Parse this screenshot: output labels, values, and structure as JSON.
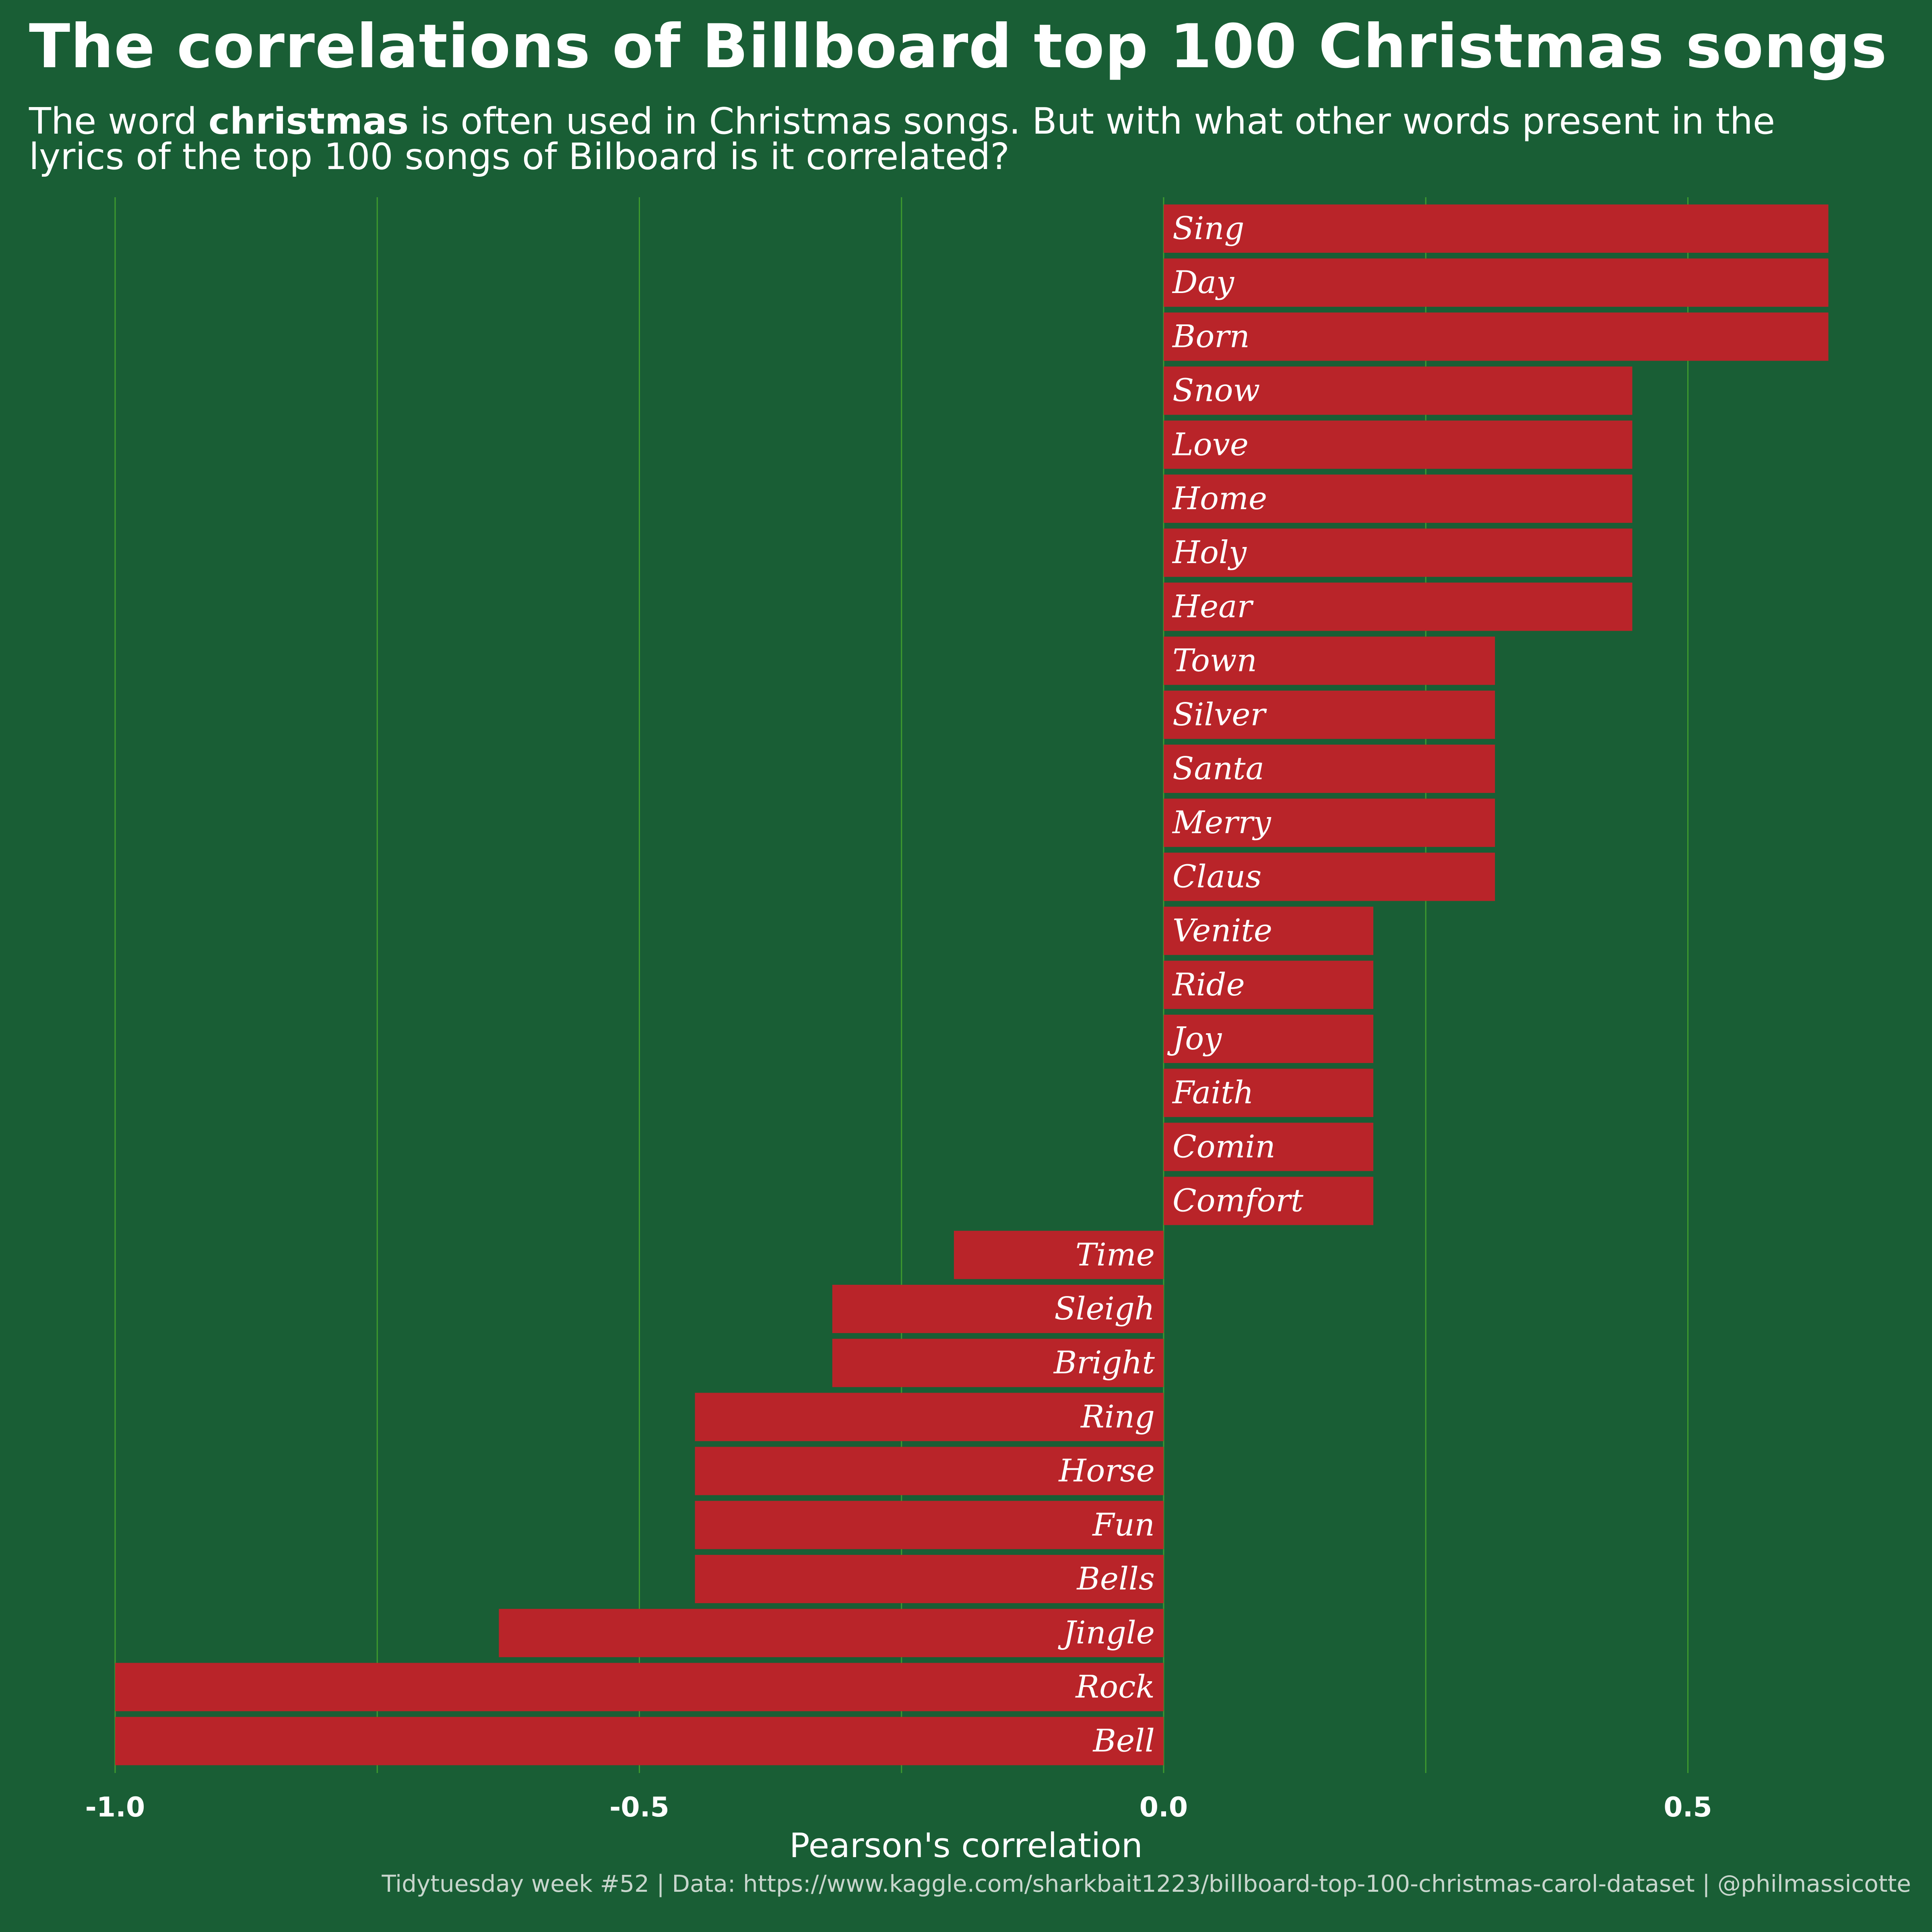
{
  "title": "The correlations of Billboard top 100 Christmas songs",
  "subtitle": {
    "before": "The word ",
    "bold": "christmas",
    "after": " is often used in Christmas songs. But with what other words present in the lyrics of the top 100 songs of Bilboard is it correlated?"
  },
  "caption": "Tidytuesday week #52 | Data: https://www.kaggle.com/sharkbait1223/billboard-top-100-christmas-carol-dataset | @philmassicotte",
  "colors": {
    "background": "#195e35",
    "bar": "#b92429",
    "grid": "#3e9a2e",
    "text": "#ffffff"
  },
  "chart_data": {
    "type": "bar",
    "orientation": "horizontal",
    "xlabel": "Pearson's correlation",
    "xlim": [
      -1.05,
      0.73
    ],
    "xticks": [
      {
        "value": -1.0,
        "label": "-1.0"
      },
      {
        "value": -0.5,
        "label": "-0.5"
      },
      {
        "value": 0.0,
        "label": "0.0"
      },
      {
        "value": 0.5,
        "label": "0.5"
      }
    ],
    "minor_gridlines": [
      -0.75,
      -0.25,
      0.25
    ],
    "categories": [
      "Sing",
      "Day",
      "Born",
      "Snow",
      "Love",
      "Home",
      "Holy",
      "Hear",
      "Town",
      "Silver",
      "Santa",
      "Merry",
      "Claus",
      "Venite",
      "Ride",
      "Joy",
      "Faith",
      "Comin",
      "Comfort",
      "Time",
      "Sleigh",
      "Bright",
      "Ring",
      "Horse",
      "Fun",
      "Bells",
      "Jingle",
      "Rock",
      "Bell"
    ],
    "values": [
      0.634,
      0.634,
      0.634,
      0.447,
      0.447,
      0.447,
      0.447,
      0.447,
      0.316,
      0.316,
      0.316,
      0.316,
      0.316,
      0.2,
      0.2,
      0.2,
      0.2,
      0.2,
      0.2,
      -0.2,
      -0.316,
      -0.316,
      -0.447,
      -0.447,
      -0.447,
      -0.447,
      -0.634,
      -1.0,
      -1.0
    ]
  }
}
